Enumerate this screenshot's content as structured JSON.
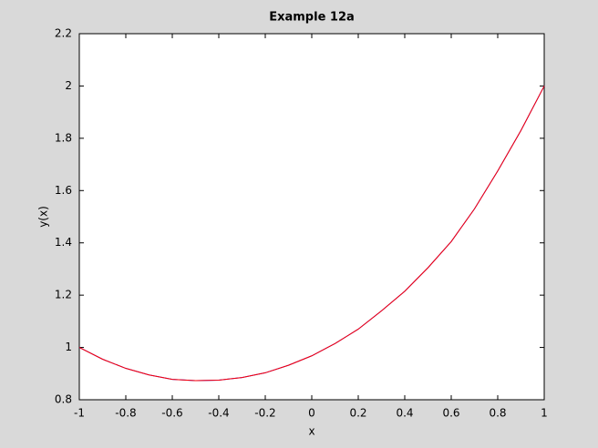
{
  "chart_data": {
    "type": "line",
    "title": "Example 12a",
    "x_label": "x",
    "y_label": "y(x)",
    "x": [
      -1,
      -0.9,
      -0.8,
      -0.7,
      -0.6,
      -0.5,
      -0.4,
      -0.3,
      -0.2,
      -0.1,
      0,
      0.1,
      0.2,
      0.3,
      0.4,
      0.5,
      0.6,
      0.7,
      0.8,
      0.9,
      1
    ],
    "series": [
      {
        "color": "#0000ff",
        "values": [
          1.0,
          0.955,
          0.92,
          0.895,
          0.878,
          0.873,
          0.875,
          0.885,
          0.903,
          0.932,
          0.968,
          1.015,
          1.07,
          1.14,
          1.215,
          1.305,
          1.405,
          1.53,
          1.675,
          1.83,
          2.0
        ]
      },
      {
        "color": "#ff0000",
        "values": [
          1.0,
          0.955,
          0.92,
          0.895,
          0.878,
          0.873,
          0.875,
          0.885,
          0.903,
          0.932,
          0.968,
          1.015,
          1.07,
          1.14,
          1.215,
          1.305,
          1.405,
          1.53,
          1.675,
          1.83,
          2.0
        ]
      }
    ],
    "xlim": [
      -1,
      1
    ],
    "xticks": [
      -1,
      -0.8,
      -0.6,
      -0.4,
      -0.2,
      0,
      0.2,
      0.4,
      0.6,
      0.8,
      1
    ],
    "ylim": [
      0.8,
      2.2
    ],
    "yticks": [
      0.8,
      1,
      1.2,
      1.4,
      1.6,
      1.8,
      2,
      2.2
    ],
    "grid": false
  }
}
